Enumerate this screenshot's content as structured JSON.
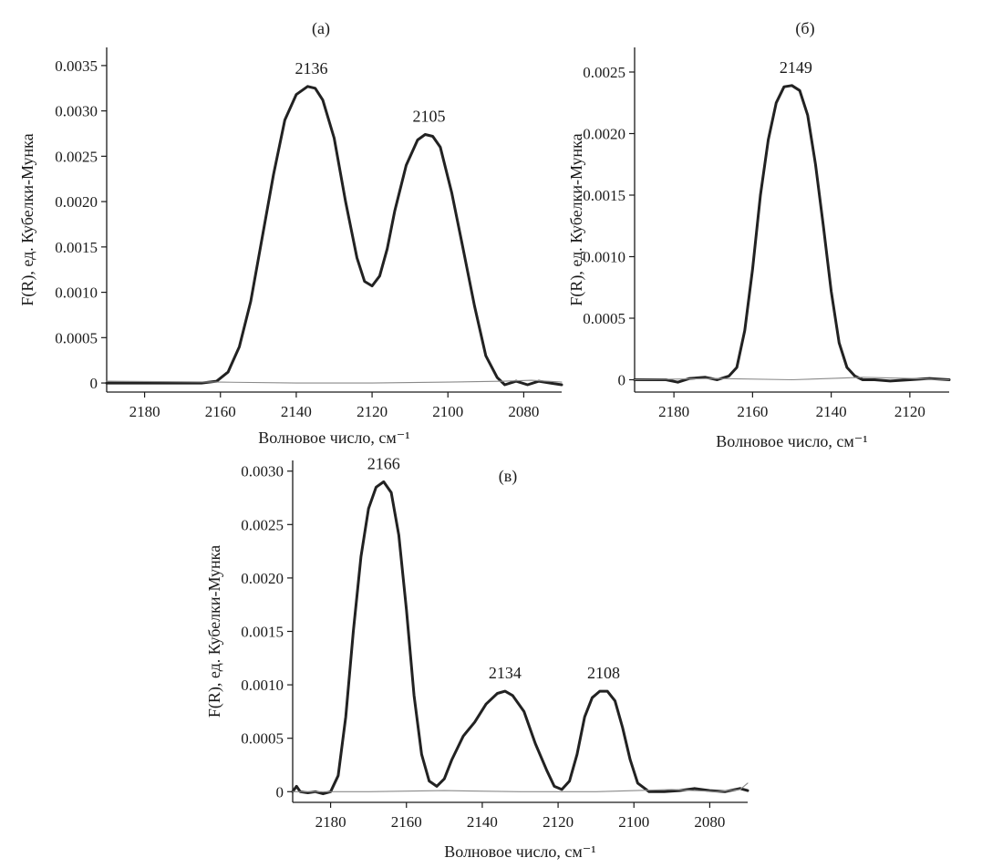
{
  "chart_data": [
    {
      "type": "line",
      "panel_label": "(а)",
      "xlabel": "Волновое число, см⁻¹",
      "ylabel": "F(R), ед. Кубелки-Мунка",
      "xlim": [
        2190,
        2070
      ],
      "ylim": [
        -0.0001,
        0.0037
      ],
      "xticks": [
        2180,
        2160,
        2140,
        2120,
        2100,
        2080
      ],
      "xtick_labels": [
        "2180",
        "2160",
        "2140",
        "2120",
        "2100",
        "2080"
      ],
      "yticks": [
        0,
        0.0005,
        0.001,
        0.0015,
        0.002,
        0.0025,
        0.003,
        0.0035
      ],
      "ytick_labels": [
        "0",
        "0.0005",
        "0.0010",
        "0.0015",
        "0.0020",
        "0.0025",
        "0.0030",
        "0.0035"
      ],
      "grid": false,
      "peak_labels": [
        {
          "text": "2136",
          "x": 2136,
          "y": 0.00327
        },
        {
          "text": "2105",
          "x": 2105,
          "y": 0.00274
        }
      ],
      "series": [
        {
          "style": "bold",
          "x": [
            2190,
            2180,
            2170,
            2165,
            2161,
            2158,
            2155,
            2152,
            2149,
            2146,
            2143,
            2140,
            2137,
            2135,
            2133,
            2130,
            2127,
            2124,
            2122,
            2120,
            2118,
            2116,
            2114,
            2111,
            2108,
            2106,
            2104,
            2102,
            2099,
            2096,
            2093,
            2090,
            2087,
            2085,
            2082,
            2079,
            2076,
            2073,
            2070
          ],
          "y": [
            0.0,
            0.0,
            0.0,
            0.0,
            2e-05,
            0.00012,
            0.0004,
            0.0009,
            0.0016,
            0.0023,
            0.0029,
            0.00318,
            0.00327,
            0.00325,
            0.00312,
            0.0027,
            0.002,
            0.00138,
            0.00112,
            0.00107,
            0.00118,
            0.00148,
            0.0019,
            0.0024,
            0.00268,
            0.00274,
            0.00272,
            0.0026,
            0.0021,
            0.00148,
            0.00085,
            0.0003,
            6e-05,
            -2e-05,
            2e-05,
            -2e-05,
            2e-05,
            0.0,
            -2e-05
          ]
        },
        {
          "style": "thin",
          "x": [
            2190,
            2160,
            2140,
            2120,
            2100,
            2085,
            2078,
            2070
          ],
          "y": [
            2e-05,
            1e-05,
            0.0,
            0.0,
            1e-05,
            2e-05,
            3e-05,
            1e-05
          ]
        }
      ]
    },
    {
      "type": "line",
      "panel_label": "(б)",
      "xlabel": "Волновое число, см⁻¹",
      "ylabel": "F(R), ед. Кубелки-Мунка",
      "xlim": [
        2190,
        2110
      ],
      "ylim": [
        -0.0001,
        0.0027
      ],
      "xticks": [
        2180,
        2160,
        2140,
        2120
      ],
      "xtick_labels": [
        "2180",
        "2160",
        "2140",
        "2120"
      ],
      "yticks": [
        0,
        0.0005,
        0.001,
        0.0015,
        0.002,
        0.0025
      ],
      "ytick_labels": [
        "0",
        "0.0005",
        "0.0010",
        "0.0015",
        "0.0020",
        "0.0025"
      ],
      "grid": false,
      "peak_labels": [
        {
          "text": "2149",
          "x": 2149,
          "y": 0.00239
        }
      ],
      "series": [
        {
          "style": "bold",
          "x": [
            2190,
            2182,
            2179,
            2176,
            2172,
            2169,
            2166,
            2164,
            2162,
            2160,
            2158,
            2156,
            2154,
            2152,
            2150,
            2148,
            2146,
            2144,
            2142,
            2140,
            2138,
            2136,
            2134,
            2132,
            2129,
            2125,
            2120,
            2115,
            2110
          ],
          "y": [
            0.0,
            0.0,
            -2e-05,
            1e-05,
            2e-05,
            0.0,
            3e-05,
            0.0001,
            0.0004,
            0.0009,
            0.0015,
            0.00195,
            0.00225,
            0.00238,
            0.00239,
            0.00235,
            0.00215,
            0.00175,
            0.00125,
            0.00072,
            0.0003,
            0.0001,
            3e-05,
            0.0,
            0.0,
            -1e-05,
            0.0,
            1e-05,
            0.0
          ]
        },
        {
          "style": "thin",
          "x": [
            2190,
            2170,
            2150,
            2140,
            2132,
            2120,
            2110
          ],
          "y": [
            0.0,
            1e-05,
            0.0,
            1e-05,
            2e-05,
            1e-05,
            0.0
          ]
        }
      ]
    },
    {
      "type": "line",
      "panel_label": "(в)",
      "xlabel": "Волновое число, см⁻¹",
      "ylabel": "F(R), ед. Кубелки-Мунка",
      "xlim": [
        2190,
        2070
      ],
      "ylim": [
        -0.0001,
        0.0031
      ],
      "xticks": [
        2180,
        2160,
        2140,
        2120,
        2100,
        2080
      ],
      "xtick_labels": [
        "2180",
        "2160",
        "2140",
        "2120",
        "2100",
        "2080"
      ],
      "yticks": [
        0,
        0.0005,
        0.001,
        0.0015,
        0.002,
        0.0025,
        0.003
      ],
      "ytick_labels": [
        "0",
        "0.0005",
        "0.0010",
        "0.0015",
        "0.0020",
        "0.0025",
        "0.0030"
      ],
      "grid": false,
      "peak_labels": [
        {
          "text": "2166",
          "x": 2166,
          "y": 0.0029
        },
        {
          "text": "2134",
          "x": 2134,
          "y": 0.00094
        },
        {
          "text": "2108",
          "x": 2108,
          "y": 0.00094
        }
      ],
      "series": [
        {
          "style": "bold",
          "x": [
            2190,
            2189,
            2188,
            2186,
            2184,
            2182,
            2180,
            2178,
            2176,
            2174,
            2172,
            2170,
            2168,
            2166,
            2164,
            2162,
            2160,
            2158,
            2156,
            2154,
            2152,
            2150,
            2148,
            2145,
            2142,
            2139,
            2136,
            2134,
            2132,
            2129,
            2126,
            2123,
            2121,
            2119,
            2117,
            2115,
            2113,
            2111,
            2109,
            2107,
            2105,
            2103,
            2101,
            2099,
            2096,
            2092,
            2088,
            2084,
            2080,
            2076,
            2072,
            2070
          ],
          "y": [
            0.0,
            5e-05,
            0.0,
            -1e-05,
            0.0,
            -2e-05,
            0.0,
            0.00015,
            0.0007,
            0.0015,
            0.0022,
            0.00265,
            0.00285,
            0.0029,
            0.0028,
            0.0024,
            0.0017,
            0.0009,
            0.00035,
            0.0001,
            5e-05,
            0.00012,
            0.0003,
            0.00052,
            0.00065,
            0.00082,
            0.00092,
            0.00094,
            0.0009,
            0.00075,
            0.00045,
            0.0002,
            5e-05,
            2e-05,
            0.0001,
            0.00035,
            0.0007,
            0.00088,
            0.00094,
            0.00094,
            0.00085,
            0.0006,
            0.0003,
            8e-05,
            0.0,
            0.0,
            1e-05,
            3e-05,
            1e-05,
            0.0,
            3e-05,
            1e-05
          ]
        },
        {
          "style": "thin",
          "x": [
            2190,
            2170,
            2150,
            2130,
            2110,
            2090,
            2078,
            2072,
            2070
          ],
          "y": [
            0.0,
            0.0,
            1e-05,
            0.0,
            0.0,
            2e-05,
            0.0,
            2e-05,
            8e-05
          ]
        }
      ]
    }
  ]
}
